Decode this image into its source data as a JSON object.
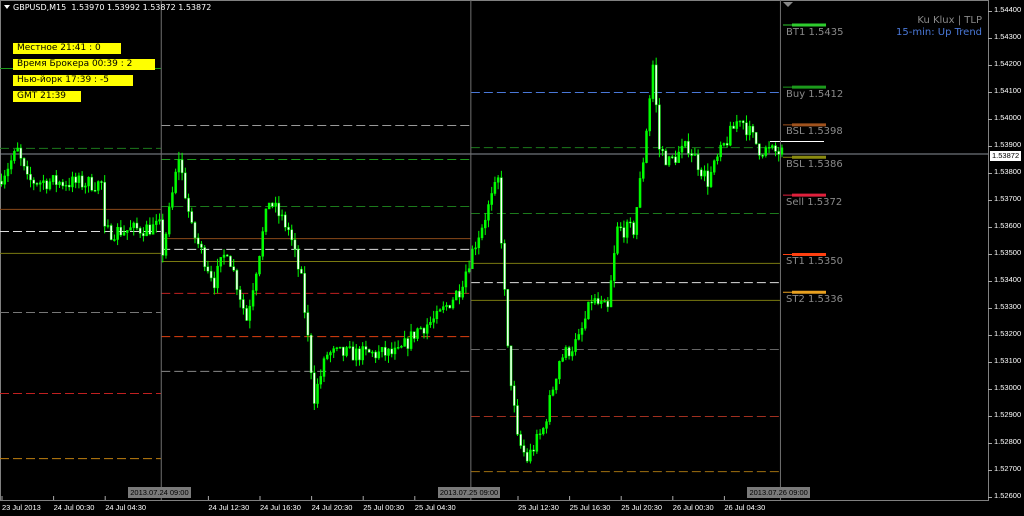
{
  "header": {
    "symbol": "GBPUSD,M15",
    "ohlc": "1.53970 1.53992 1.53872 1.53872"
  },
  "clocks": [
    {
      "label": "Местное  21:41 : 0"
    },
    {
      "label": "Время Брокера  00:39 : 2"
    },
    {
      "label": "Нью-йорк  17:39 : -5"
    },
    {
      "label": "GMT  21:39"
    }
  ],
  "indicator": {
    "name": "Ku Klux | TLP",
    "trend": "15-min: Up Trend",
    "name_color": "#8a8a8a",
    "trend_color": "#4a78d8"
  },
  "levels_right": [
    {
      "label": "BT1 1.5435",
      "price": 1.5435,
      "color": "#2ecc2e"
    },
    {
      "label": "Buy 1.5412",
      "price": 1.5412,
      "color": "#1c9a1c"
    },
    {
      "label": "BSL 1.5398",
      "price": 1.5398,
      "color": "#a0521d"
    },
    {
      "label": "BSL 1.5386",
      "price": 1.5386,
      "color": "#8a8a10"
    },
    {
      "label": "Sell 1.5372",
      "price": 1.5372,
      "color": "#e0203c"
    },
    {
      "label": "ST1 1.5350",
      "price": 1.535,
      "color": "#ff4010"
    },
    {
      "label": "ST2 1.5336",
      "price": 1.5336,
      "color": "#e8a020"
    }
  ],
  "current_price": "1.53872",
  "chart_data": {
    "type": "candlestick",
    "timeframe": "M15",
    "ylim": [
      1.5257,
      1.5442
    ],
    "price_ticks": [
      "1.54400",
      "1.54300",
      "1.54200",
      "1.54100",
      "1.54000",
      "1.53900",
      "1.53800",
      "1.53700",
      "1.53600",
      "1.53500",
      "1.53400",
      "1.53300",
      "1.53200",
      "1.53100",
      "1.53000",
      "1.52900",
      "1.52800",
      "1.52700",
      "1.52600"
    ],
    "time_ticks": [
      {
        "label": "23 Jul 2013",
        "t": "2013.07.23 20:30"
      },
      {
        "label": "24 Jul 00:30",
        "t": "2013.07.24 00:30"
      },
      {
        "label": "24 Jul 04:30",
        "t": "2013.07.24 04:30"
      },
      {
        "label": "24 Jul 12:30",
        "t": "2013.07.24 12:30"
      },
      {
        "label": "24 Jul 16:30",
        "t": "2013.07.24 16:30"
      },
      {
        "label": "24 Jul 20:30",
        "t": "2013.07.24 20:30"
      },
      {
        "label": "25 Jul 00:30",
        "t": "2013.07.25 00:30"
      },
      {
        "label": "25 Jul 04:30",
        "t": "2013.07.25 04:30"
      },
      {
        "label": "25 Jul 12:30",
        "t": "2013.07.25 12:30"
      },
      {
        "label": "25 Jul 16:30",
        "t": "2013.07.25 16:30"
      },
      {
        "label": "25 Jul 20:30",
        "t": "2013.07.25 20:30"
      },
      {
        "label": "26 Jul 00:30",
        "t": "2013.07.26 00:30"
      },
      {
        "label": "26 Jul 04:30",
        "t": "2013.07.26 04:30"
      }
    ],
    "day_separators": [
      {
        "label": "2013.07.24 09:00",
        "t": "2013.07.24 09:00"
      },
      {
        "label": "2013.07.25 09:00",
        "t": "2013.07.25 09:00"
      },
      {
        "label": "2013.07.26 09:00",
        "t": "2013.07.26 09:00"
      }
    ],
    "close_path": [
      [
        "2013.07.23 20:30",
        1.5377
      ],
      [
        "2013.07.23 22:00",
        1.5388
      ],
      [
        "2013.07.23 22:45",
        1.5377
      ],
      [
        "2013.07.24 04:30",
        1.5376
      ],
      [
        "2013.07.24 04:45",
        1.5358
      ],
      [
        "2013.07.24 09:00",
        1.536
      ],
      [
        "2013.07.24 09:15",
        1.5351
      ],
      [
        "2013.07.24 10:30",
        1.5386
      ],
      [
        "2013.07.24 11:30",
        1.5359
      ],
      [
        "2013.07.24 13:15",
        1.534
      ],
      [
        "2013.07.24 14:15",
        1.5352
      ],
      [
        "2013.07.24 15:45",
        1.5326
      ],
      [
        "2013.07.24 17:30",
        1.537
      ],
      [
        "2013.07.24 19:00",
        1.5359
      ],
      [
        "2013.07.24 20:00",
        1.534
      ],
      [
        "2013.07.24 21:00",
        1.5297
      ],
      [
        "2013.07.24 22:00",
        1.5313
      ],
      [
        "2013.07.25 03:30",
        1.5313
      ],
      [
        "2013.07.25 05:00",
        1.5322
      ],
      [
        "2013.07.25 06:30",
        1.5326
      ],
      [
        "2013.07.25 08:15",
        1.5337
      ],
      [
        "2013.07.25 09:15",
        1.5351
      ],
      [
        "2013.07.25 11:15",
        1.5377
      ],
      [
        "2013.07.25 12:00",
        1.5314
      ],
      [
        "2013.07.25 12:45",
        1.5281
      ],
      [
        "2013.07.25 13:30",
        1.5274
      ],
      [
        "2013.07.25 14:45",
        1.5285
      ],
      [
        "2013.07.25 16:00",
        1.5311
      ],
      [
        "2013.07.25 17:30",
        1.5318
      ],
      [
        "2013.07.25 18:30",
        1.5333
      ],
      [
        "2013.07.25 19:45",
        1.5329
      ],
      [
        "2013.07.25 20:30",
        1.5359
      ],
      [
        "2013.07.25 21:45",
        1.5359
      ],
      [
        "2013.07.25 22:30",
        1.5385
      ],
      [
        "2013.07.25 23:15",
        1.542
      ],
      [
        "2013.07.25 23:45",
        1.5389
      ],
      [
        "2013.07.26 00:30",
        1.5384
      ],
      [
        "2013.07.26 02:00",
        1.539
      ],
      [
        "2013.07.26 03:30",
        1.5377
      ],
      [
        "2013.07.26 04:45",
        1.539
      ],
      [
        "2013.07.26 06:00",
        1.5401
      ],
      [
        "2013.07.26 07:30",
        1.5389
      ],
      [
        "2013.07.26 09:15",
        1.53872
      ]
    ],
    "level_segments": [
      {
        "from": "2013.07.23 20:30",
        "to": "2013.07.24 09:00",
        "lines": [
          [
            1.54189,
            "#1c9a1c",
            "solid"
          ],
          [
            1.53893,
            "#1c7a1c",
            "dash"
          ],
          [
            1.53667,
            "#8a4a1a",
            "solid"
          ],
          [
            1.53585,
            "#dddddd",
            "dash"
          ],
          [
            1.53504,
            "#7a7a10",
            "solid"
          ],
          [
            1.53285,
            "#777777",
            "dash"
          ],
          [
            1.52985,
            "#c02020",
            "dash"
          ],
          [
            1.52744,
            "#c08010",
            "dash"
          ]
        ]
      },
      {
        "from": "2013.07.24 09:00",
        "to": "2013.07.25 09:00",
        "lines": [
          [
            1.53978,
            "#999999",
            "dash"
          ],
          [
            1.53852,
            "#1c9a1c",
            "dash"
          ],
          [
            1.53678,
            "#1c7a1c",
            "dash"
          ],
          [
            1.53559,
            "#8a4a1a",
            "solid"
          ],
          [
            1.53519,
            "#dddddd",
            "dash"
          ],
          [
            1.53474,
            "#7a7a10",
            "solid"
          ],
          [
            1.53356,
            "#c02020",
            "dash"
          ],
          [
            1.53196,
            "#e04010",
            "dash"
          ],
          [
            1.53067,
            "#888888",
            "dash"
          ]
        ]
      },
      {
        "from": "2013.07.25 09:00",
        "to": "2013.07.26 09:00",
        "lines": [
          [
            1.541,
            "#4a78d8",
            "dash"
          ],
          [
            1.53896,
            "#1c7a1c",
            "dash"
          ],
          [
            1.53652,
            "#1c7a1c",
            "dash"
          ],
          [
            1.53467,
            "#7a7a10",
            "solid"
          ],
          [
            1.53396,
            "#dddddd",
            "dash"
          ],
          [
            1.5333,
            "#7a7a10",
            "solid"
          ],
          [
            1.53148,
            "#666666",
            "dash"
          ],
          [
            1.529,
            "#a03020",
            "dash"
          ],
          [
            1.52696,
            "#a07010",
            "dash"
          ]
        ]
      }
    ],
    "colors": {
      "bull": "#00ff00",
      "bear": "#00ff00",
      "bear_body": "#ffffff",
      "grid": "#808080",
      "background": "#000000"
    }
  }
}
